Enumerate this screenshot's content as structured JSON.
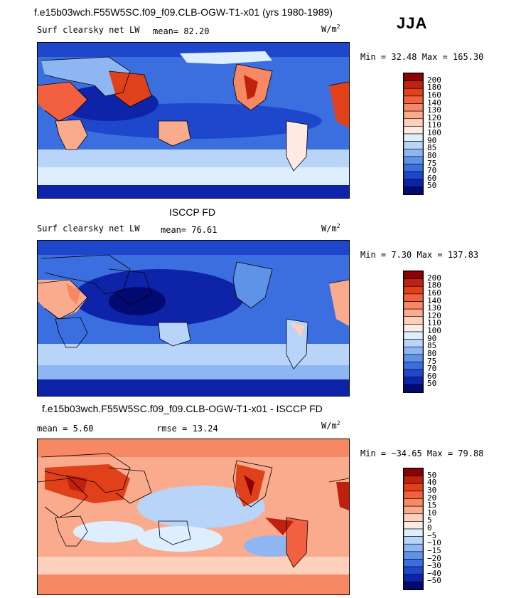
{
  "season": "JJA",
  "panels": [
    {
      "id": "model",
      "title": "f.e15b03wch.F55W5SC.f09_f09.CLB-OGW-T1-x01 (yrs 1980-1989)",
      "left_label": "Surf clearsky net LW",
      "stat1": "mean=  82.20",
      "stat2": "",
      "units": "W/m",
      "units_sup": "2",
      "minmax": "Min =  32.48 Max = 165.30"
    },
    {
      "id": "obs",
      "title": "ISCCP FD",
      "left_label": "Surf clearsky net LW",
      "stat1": "mean=  76.61",
      "stat2": "",
      "units": "W/m",
      "units_sup": "2",
      "minmax": "Min =   7.30 Max = 137.83"
    },
    {
      "id": "diff",
      "title": "f.e15b03wch.F55W5SC.f09_f09.CLB-OGW-T1-x01 - ISCCP FD",
      "left_label": "mean =   5.60",
      "stat1": "rmse =  13.24",
      "stat2": "",
      "units": "W/m",
      "units_sup": "2",
      "minmax": "Min = −34.65 Max =  79.88"
    }
  ],
  "colorbars": {
    "abs": {
      "labels": [
        "200",
        "180",
        "160",
        "140",
        "130",
        "120",
        "110",
        "100",
        "90",
        "85",
        "80",
        "75",
        "70",
        "60",
        "50"
      ],
      "colors": [
        "#8b0000",
        "#c0200e",
        "#e0401a",
        "#f26040",
        "#f78864",
        "#fbab8d",
        "#fdd0bc",
        "#fdeae2",
        "#ddeeff",
        "#b8d4f8",
        "#8eb6f2",
        "#5f93e8",
        "#3b6fe0",
        "#1f47cc",
        "#0d24a8",
        "#000a70"
      ]
    },
    "diff": {
      "labels": [
        "50",
        "40",
        "30",
        "20",
        "15",
        "10",
        "5",
        "0",
        "−5",
        "−10",
        "−15",
        "−20",
        "−30",
        "−40",
        "−50"
      ],
      "colors": [
        "#8b0000",
        "#c0200e",
        "#e0401a",
        "#f26040",
        "#f78864",
        "#fbab8d",
        "#fdd0bc",
        "#fdeae2",
        "#ddeeff",
        "#b8d4f8",
        "#8eb6f2",
        "#5f93e8",
        "#3b6fe0",
        "#1f47cc",
        "#0d24a8",
        "#000a70"
      ]
    }
  },
  "chart_data": [
    {
      "type": "heatmap",
      "title": "f.e15b03wch.F55W5SC.f09_f09.CLB-OGW-T1-x01 (yrs 1980-1989)",
      "variable": "Surf clearsky net LW",
      "units": "W/m2",
      "season": "JJA",
      "mean": 82.2,
      "min": 32.48,
      "max": 165.3,
      "levels": [
        50,
        60,
        70,
        75,
        80,
        85,
        90,
        100,
        110,
        120,
        130,
        140,
        160,
        180,
        200
      ]
    },
    {
      "type": "heatmap",
      "title": "ISCCP FD",
      "variable": "Surf clearsky net LW",
      "units": "W/m2",
      "season": "JJA",
      "mean": 76.61,
      "min": 7.3,
      "max": 137.83,
      "levels": [
        50,
        60,
        70,
        75,
        80,
        85,
        90,
        100,
        110,
        120,
        130,
        140,
        160,
        180,
        200
      ]
    },
    {
      "type": "heatmap",
      "title": "f.e15b03wch.F55W5SC.f09_f09.CLB-OGW-T1-x01 - ISCCP FD",
      "units": "W/m2",
      "season": "JJA",
      "mean": 5.6,
      "rmse": 13.24,
      "min": -34.65,
      "max": 79.88,
      "levels": [
        -50,
        -40,
        -30,
        -20,
        -15,
        -10,
        -5,
        0,
        5,
        10,
        15,
        20,
        30,
        40,
        50
      ]
    }
  ]
}
